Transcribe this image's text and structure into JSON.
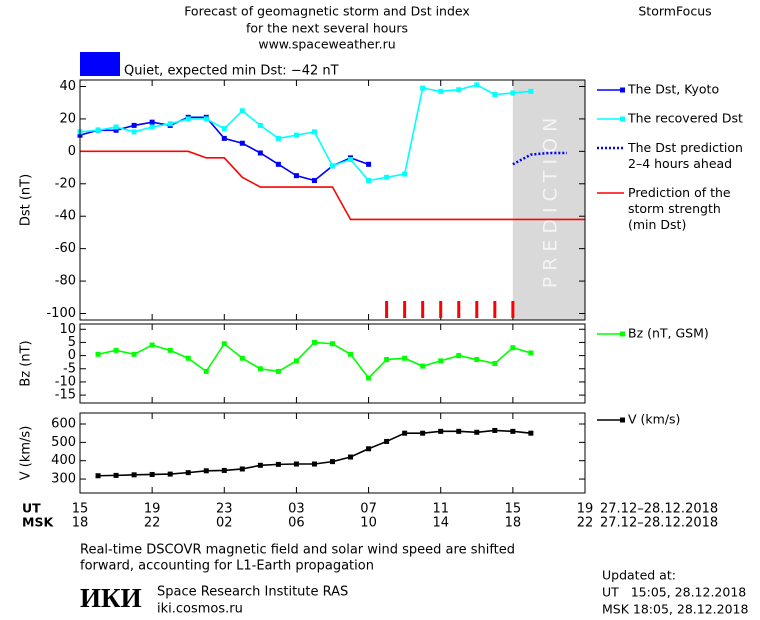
{
  "header": {
    "title_lines": [
      "Forecast of geomagnetic storm and Dst index",
      "for the next several hours",
      "www.spaceweather.ru"
    ],
    "brand": "StormFocus"
  },
  "status": {
    "color": "#0000ff",
    "text": "Quiet, expected min Dst: −42 nT"
  },
  "chart_data": [
    {
      "type": "line",
      "ylabel": "Dst (nT)",
      "xlim": [
        0,
        28
      ],
      "ylim": [
        -104,
        44
      ],
      "yticks": [
        40,
        20,
        0,
        -20,
        -40,
        -60,
        -80,
        -100
      ],
      "prediction_zone": [
        24,
        28
      ],
      "prediction_label": "PREDICTION",
      "prediction_marks_x": [
        17,
        18,
        19,
        20,
        21,
        22,
        23,
        24
      ],
      "prediction_marks_color": "#ff0000",
      "series": [
        {
          "name": "The Dst, Kyoto",
          "color": "#0000ff",
          "marker": "square",
          "dash": false,
          "x": [
            0,
            1,
            2,
            3,
            4,
            5,
            6,
            7,
            8,
            9,
            10,
            11,
            12,
            13,
            14,
            15,
            16
          ],
          "values": [
            10,
            13,
            13,
            16,
            18,
            16,
            21,
            21,
            8,
            5,
            -1,
            -8,
            -15,
            -18,
            -9,
            -4,
            -8
          ]
        },
        {
          "name": "The recovered Dst",
          "color": "#00ffff",
          "marker": "square",
          "dash": false,
          "x": [
            0,
            1,
            2,
            3,
            4,
            5,
            6,
            7,
            8,
            9,
            10,
            11,
            12,
            13,
            14,
            15,
            16,
            17,
            18,
            19,
            20,
            21,
            22,
            23,
            24,
            25
          ],
          "values": [
            12,
            13,
            15,
            12,
            15,
            17,
            20,
            20,
            14,
            25,
            16,
            8,
            10,
            12,
            -9,
            -5,
            -18,
            -16,
            -14,
            39,
            37,
            38,
            41,
            35,
            36,
            37
          ]
        },
        {
          "name": "The Dst prediction\n2–4 hours ahead",
          "color": "#0000ff",
          "marker": null,
          "dash": true,
          "x": [
            24,
            25,
            26,
            27
          ],
          "values": [
            -8,
            -2,
            -1,
            -1
          ]
        },
        {
          "name": "Prediction of the\nstorm strength\n(min Dst)",
          "color": "#ff0000",
          "marker": null,
          "dash": false,
          "x": [
            0,
            6,
            7,
            8,
            9,
            10,
            14,
            15,
            28
          ],
          "values": [
            0,
            0,
            -4,
            -4,
            -16,
            -22,
            -22,
            -42,
            -42
          ]
        }
      ]
    },
    {
      "type": "line",
      "ylabel": "Bz (nT)",
      "xlim": [
        0,
        28
      ],
      "ylim": [
        -18,
        12
      ],
      "yticks": [
        10,
        5,
        0,
        -5,
        -10,
        -15
      ],
      "series": [
        {
          "name": "Bz (nT, GSM)",
          "color": "#00ff00",
          "marker": "square",
          "dash": false,
          "x": [
            1,
            2,
            3,
            4,
            5,
            6,
            7,
            8,
            9,
            10,
            11,
            12,
            13,
            14,
            15,
            16,
            17,
            18,
            19,
            20,
            21,
            22,
            23,
            24,
            25
          ],
          "values": [
            0.5,
            2,
            0.5,
            4,
            2,
            -1,
            -6,
            4.5,
            -1,
            -5,
            -6,
            -2,
            5,
            4.5,
            0.5,
            -8.5,
            -1.5,
            -1,
            -4,
            -2,
            0,
            -1.5,
            -3,
            3,
            1
          ]
        }
      ]
    },
    {
      "type": "line",
      "ylabel": "V (km/s)",
      "xlim": [
        0,
        28
      ],
      "ylim": [
        224,
        660
      ],
      "yticks": [
        600,
        500,
        400,
        300
      ],
      "xticks": [
        {
          "value": 0,
          "label": "15"
        },
        {
          "value": 4,
          "label": "19"
        },
        {
          "value": 8,
          "label": "23"
        },
        {
          "value": 12,
          "label": "03"
        },
        {
          "value": 16,
          "label": "07"
        },
        {
          "value": 20,
          "label": "11"
        },
        {
          "value": 24,
          "label": "15"
        },
        {
          "value": 28,
          "label": "19"
        }
      ],
      "xticks_msk": [
        {
          "value": 0,
          "label": "18"
        },
        {
          "value": 4,
          "label": "22"
        },
        {
          "value": 8,
          "label": "02"
        },
        {
          "value": 12,
          "label": "06"
        },
        {
          "value": 16,
          "label": "10"
        },
        {
          "value": 20,
          "label": "14"
        },
        {
          "value": 24,
          "label": "18"
        },
        {
          "value": 28,
          "label": "22"
        }
      ],
      "xrow_labels": [
        "UT",
        "MSK"
      ],
      "date_range": "27.12–28.12.2018",
      "series": [
        {
          "name": "V (km/s)",
          "color": "#000000",
          "marker": "square",
          "dash": false,
          "x": [
            1,
            2,
            3,
            4,
            5,
            6,
            7,
            8,
            9,
            10,
            11,
            12,
            13,
            14,
            15,
            16,
            17,
            18,
            19,
            20,
            21,
            22,
            23,
            24,
            25
          ],
          "values": [
            318,
            320,
            323,
            325,
            327,
            335,
            345,
            347,
            355,
            375,
            380,
            382,
            382,
            395,
            420,
            465,
            505,
            550,
            550,
            560,
            560,
            555,
            565,
            560,
            550
          ]
        }
      ]
    }
  ],
  "footer": {
    "note_lines": [
      "Real-time DSCOVR magnetic field and solar wind speed are shifted",
      "forward, accounting for L1-Earth propagation"
    ],
    "logo": "ИКИ",
    "institute": "Space Research Institute RAS",
    "site": "iki.cosmos.ru",
    "updated_title": "Updated at:",
    "updated_lines": [
      "UT   15:05, 28.12.2018",
      "MSK 18:05, 28.12.2018"
    ]
  }
}
